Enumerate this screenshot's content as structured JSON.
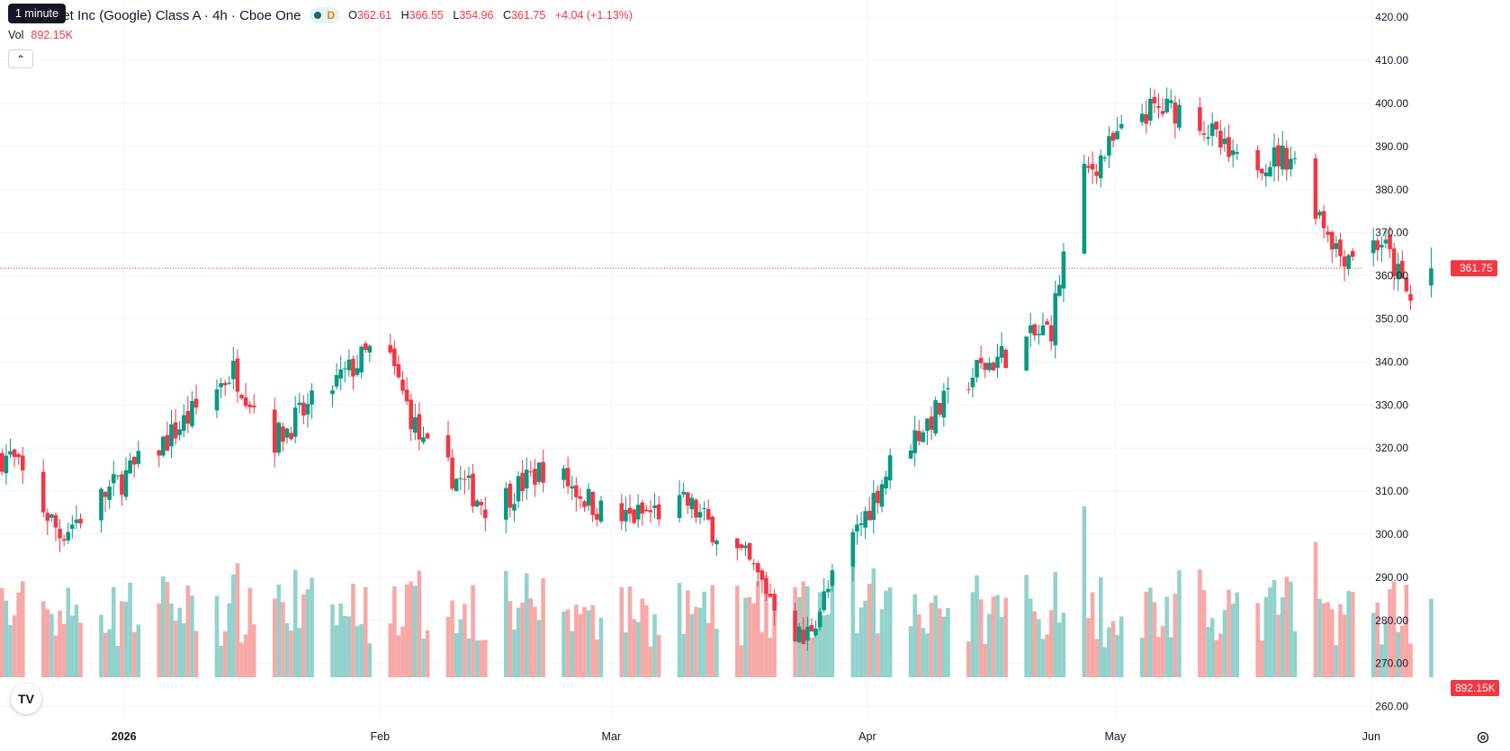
{
  "tooltip": "1 minute",
  "legend": {
    "symbol": "pet Inc (Google) Class A · 4h · Cboe One",
    "interval_flag": "D",
    "o_label": "O",
    "o_value": "362.61",
    "h_label": "H",
    "h_value": "366.55",
    "l_label": "L",
    "l_value": "354.96",
    "c_label": "C",
    "c_value": "361.75",
    "change": "+4.04 (+1.13%)"
  },
  "volume": {
    "label": "Vol",
    "value": "892.15K"
  },
  "logo_text": "TV",
  "colors": {
    "up": "#089981",
    "down": "#f23645",
    "up_vol": "#92d2cc",
    "down_vol": "#f7a9a7",
    "grid": "#f0f3fa",
    "text": "#131722"
  },
  "chart_data": {
    "type": "candlestick",
    "timeframe": "4h",
    "ylim": [
      257,
      424
    ],
    "y_ticks": [
      "420.00",
      "410.00",
      "400.00",
      "390.00",
      "380.00",
      "370.00",
      "360.00",
      "350.00",
      "340.00",
      "330.00",
      "320.00",
      "310.00",
      "300.00",
      "290.00",
      "280.00",
      "270.00",
      "260.00"
    ],
    "x_ticks": [
      "2026",
      "Feb",
      "Mar",
      "Apr",
      "May",
      "Jun"
    ],
    "last_price": "361.75",
    "last_volume": "892.15K",
    "anchors": [
      {
        "date": "2025-12-18",
        "close": 318
      },
      {
        "date": "2025-12-24",
        "close": 300
      },
      {
        "date": "2026-01-06",
        "close": 322
      },
      {
        "date": "2026-01-14",
        "close": 338
      },
      {
        "date": "2026-01-19",
        "close": 322
      },
      {
        "date": "2026-02-01",
        "close": 345
      },
      {
        "date": "2026-02-06",
        "close": 320
      },
      {
        "date": "2026-02-14",
        "close": 306
      },
      {
        "date": "2026-02-21",
        "close": 316
      },
      {
        "date": "2026-03-01",
        "close": 303
      },
      {
        "date": "2026-03-10",
        "close": 307
      },
      {
        "date": "2026-03-17",
        "close": 294
      },
      {
        "date": "2026-03-24",
        "close": 275
      },
      {
        "date": "2026-03-29",
        "close": 295
      },
      {
        "date": "2026-04-04",
        "close": 318
      },
      {
        "date": "2026-04-14",
        "close": 338
      },
      {
        "date": "2026-04-23",
        "close": 348
      },
      {
        "date": "2026-04-26",
        "close": 381
      },
      {
        "date": "2026-05-04",
        "close": 398
      },
      {
        "date": "2026-05-10",
        "close": 399
      },
      {
        "date": "2026-05-15",
        "close": 386
      },
      {
        "date": "2026-05-22",
        "close": 388
      },
      {
        "date": "2026-05-28",
        "close": 365
      },
      {
        "date": "2026-06-02",
        "close": 368
      },
      {
        "date": "2026-06-06",
        "close": 352
      },
      {
        "date": "2026-06-08",
        "close": 361.75
      }
    ]
  }
}
